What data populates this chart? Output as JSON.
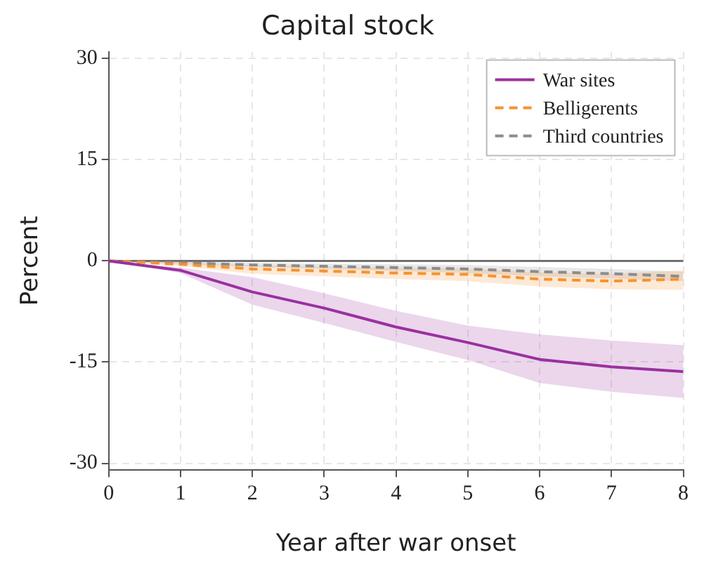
{
  "chart_data": {
    "type": "line",
    "title": "Capital stock",
    "xlabel": "Year after war onset",
    "ylabel": "Percent",
    "x": [
      0,
      1,
      2,
      3,
      4,
      5,
      6,
      7,
      8
    ],
    "series": [
      {
        "name": "War sites",
        "color": "#9b30a0",
        "line_style": "solid",
        "values": [
          0,
          -1.4,
          -4.6,
          -7.0,
          -9.8,
          -12.1,
          -14.6,
          -15.7,
          -16.4
        ],
        "lower": [
          0,
          -1.8,
          -6.5,
          -9.2,
          -12.0,
          -14.7,
          -18.1,
          -19.4,
          -20.3
        ],
        "upper": [
          0,
          -1.0,
          -2.4,
          -4.8,
          -7.4,
          -9.6,
          -10.9,
          -11.8,
          -12.5
        ]
      },
      {
        "name": "Belligerents",
        "color": "#f7922e",
        "line_style": "dashed",
        "values": [
          0,
          -0.5,
          -1.2,
          -1.5,
          -1.8,
          -2.0,
          -2.7,
          -3.0,
          -2.7
        ],
        "lower": [
          0,
          -0.8,
          -1.9,
          -2.3,
          -2.7,
          -3.0,
          -3.8,
          -4.2,
          -4.3
        ],
        "upper": [
          0,
          -0.2,
          -0.6,
          -0.8,
          -1.0,
          -1.1,
          -1.7,
          -1.9,
          -1.4
        ]
      },
      {
        "name": "Third countries",
        "color": "#8c8c8c",
        "line_style": "dashed",
        "values": [
          0,
          -0.3,
          -0.6,
          -0.8,
          -1.0,
          -1.2,
          -1.6,
          -1.9,
          -2.3
        ],
        "lower": [
          0,
          -0.5,
          -0.9,
          -1.2,
          -1.5,
          -1.8,
          -2.3,
          -2.6,
          -3.0
        ],
        "upper": [
          0,
          -0.1,
          -0.3,
          -0.4,
          -0.5,
          -0.6,
          -0.9,
          -1.2,
          -1.6
        ]
      }
    ],
    "xlim": [
      0,
      8
    ],
    "xticks": [
      0,
      1,
      2,
      3,
      4,
      5,
      6,
      7,
      8
    ],
    "ylim": [
      -31,
      31
    ],
    "yticks": [
      -30,
      -15,
      0,
      15,
      30
    ],
    "ref_lines": [
      {
        "axis": "y",
        "value": 0,
        "color": "#707070"
      }
    ],
    "grid": true,
    "legend": "top right",
    "marker": "none"
  }
}
